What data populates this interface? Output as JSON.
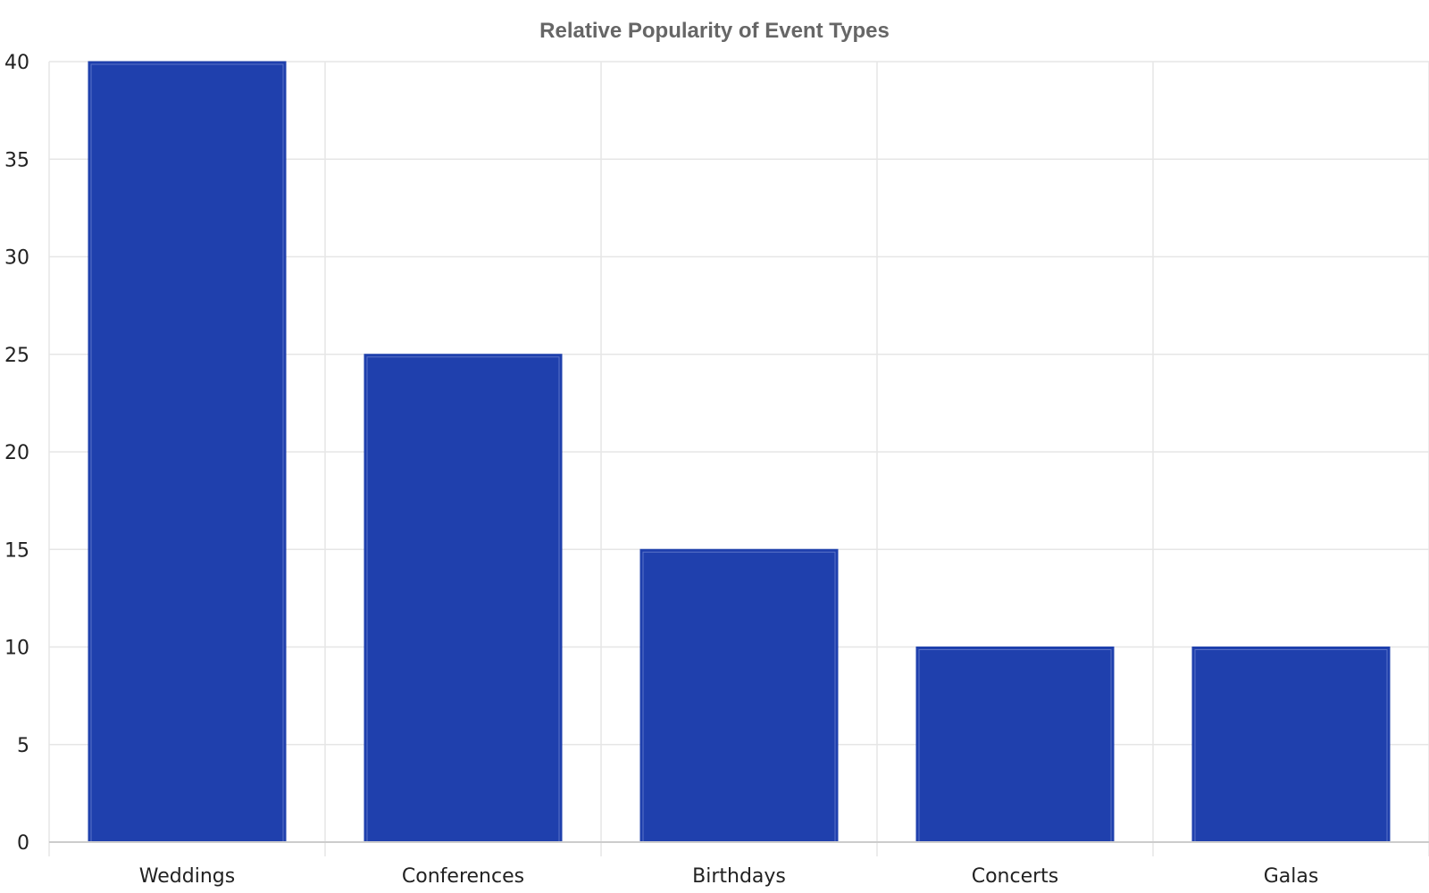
{
  "chart_data": {
    "type": "bar",
    "title": "Relative Popularity of Event Types",
    "xlabel": "",
    "ylabel": "",
    "categories": [
      "Weddings",
      "Conferences",
      "Birthdays",
      "Concerts",
      "Galas"
    ],
    "values": [
      40,
      25,
      15,
      10,
      10
    ],
    "ylim": [
      0,
      40
    ],
    "yticks": [
      0,
      5,
      10,
      15,
      20,
      25,
      30,
      35,
      40
    ],
    "grid": true,
    "legend": "none"
  },
  "colors": {
    "bar_fill": "#1f40ad",
    "bar_inner_stroke": "#5a72c8",
    "grid": "#e6e6e6",
    "axis": "#cccccc",
    "title": "#666666",
    "tick_label": "#222222"
  }
}
